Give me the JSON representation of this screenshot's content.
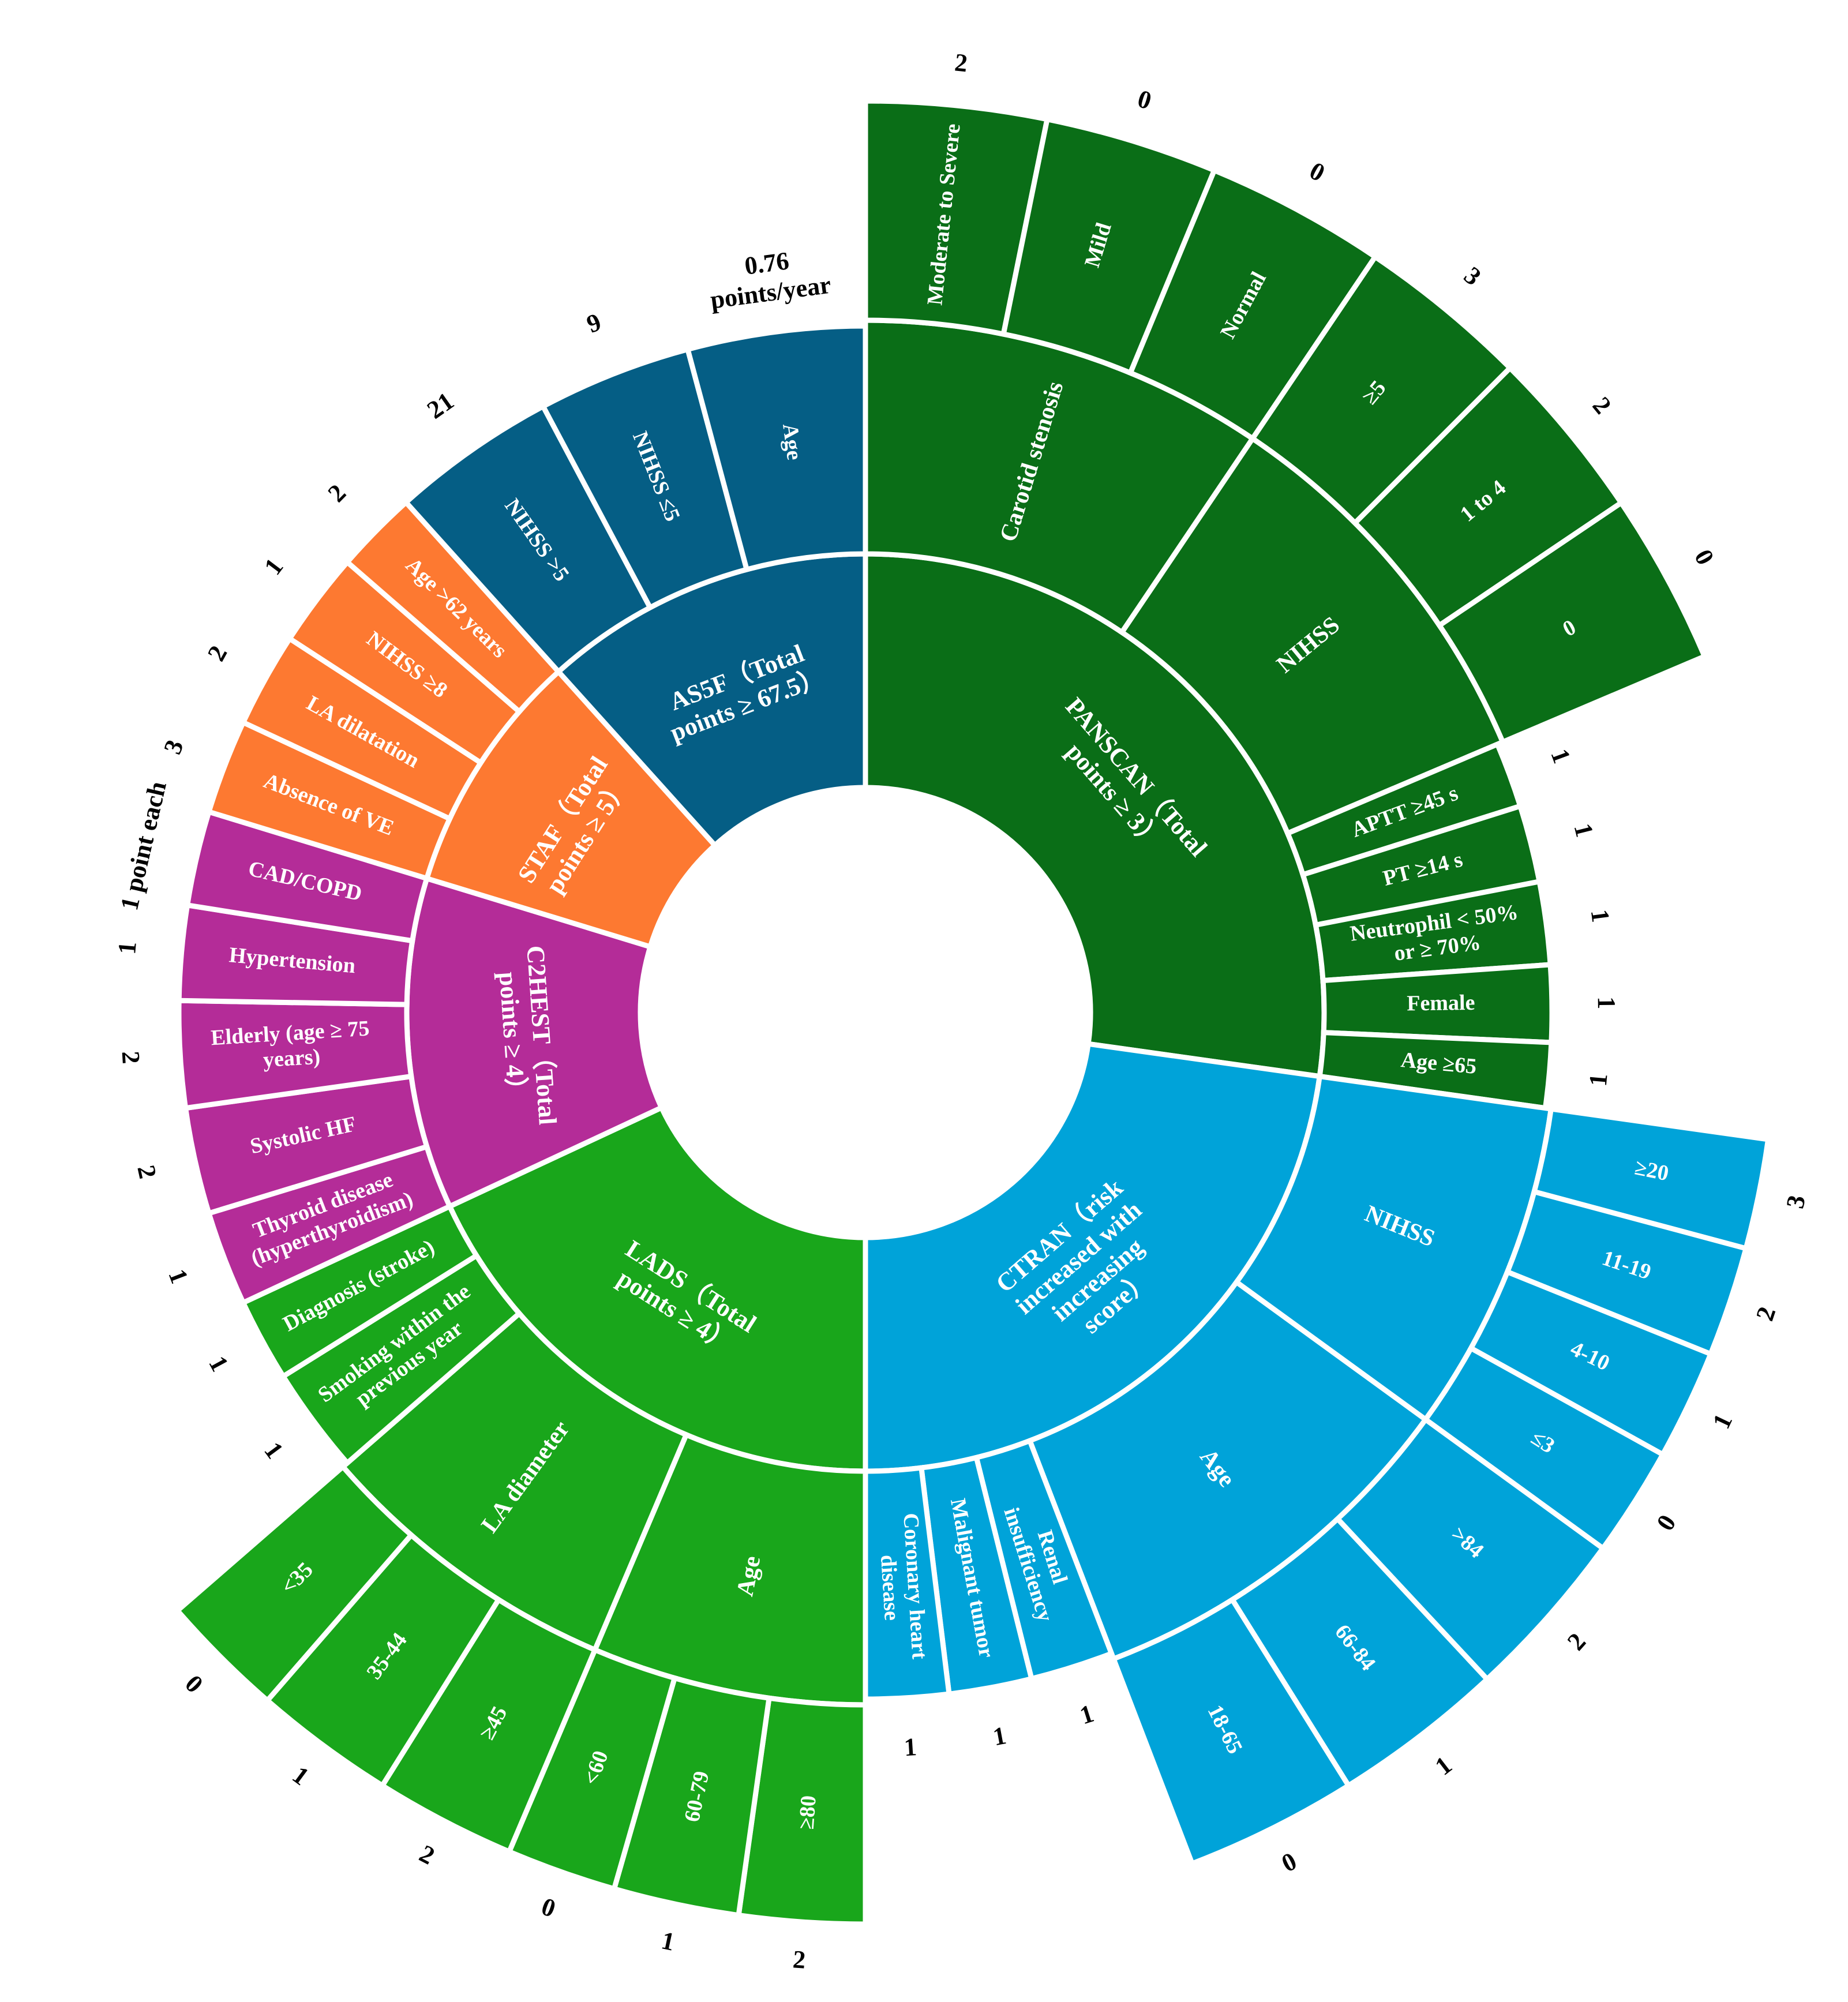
{
  "chart_data": {
    "type": "sunburst",
    "colors": {
      "PANSCAN": "#0a6e17",
      "CTRAN": "#00a3d9",
      "LADS": "#19a61b",
      "C2HEST": "#b42c98",
      "STAF": "#fd7931",
      "AS5F": "#055e85"
    },
    "schemes": [
      {
        "id": "PANSCAN",
        "label": "PANSCAN（Total points ≥ 3）",
        "items": [
          {
            "label": "Carotid stenosis",
            "sub": [
              {
                "label": "Moderate to Severe",
                "points": "2"
              },
              {
                "label": "Mild",
                "points": "0"
              },
              {
                "label": "Normal",
                "points": "0"
              }
            ]
          },
          {
            "label": "NIHSS",
            "sub": [
              {
                "label": "≥5",
                "points": "3"
              },
              {
                "label": "1 to 4",
                "points": "2"
              },
              {
                "label": "0",
                "points": "0"
              }
            ]
          },
          {
            "label": "APTT ≥45 s",
            "points": "1"
          },
          {
            "label": "PT ≥14 s",
            "points": "1"
          },
          {
            "label": "Neutrophil < 50% or ≥ 70%",
            "points": "1"
          },
          {
            "label": "Female",
            "points": "1"
          },
          {
            "label": "Age ≥65",
            "points": "1"
          }
        ]
      },
      {
        "id": "CTRAN",
        "label": "CTRAN（risk increased with increasing score）",
        "items": [
          {
            "label": "NIHSS",
            "sub": [
              {
                "label": "≥20",
                "points": "3"
              },
              {
                "label": "11-19",
                "points": "2"
              },
              {
                "label": "4-10",
                "points": "1"
              },
              {
                "label": "≤3",
                "points": "0"
              }
            ]
          },
          {
            "label": "Age",
            "sub": [
              {
                "label": ">84",
                "points": "2"
              },
              {
                "label": "66-84",
                "points": "1"
              },
              {
                "label": "18-65",
                "points": "0"
              }
            ]
          },
          {
            "label": "Renal insufficiency",
            "points": "1"
          },
          {
            "label": "Malignant tumor",
            "points": "1"
          },
          {
            "label": "Coronary heart disease",
            "points": "1"
          }
        ]
      },
      {
        "id": "LADS",
        "label": "LADS（Total points ≥ 4）",
        "items": [
          {
            "label": "Age",
            "sub": [
              {
                "label": "≥80",
                "points": "2"
              },
              {
                "label": "60-79",
                "points": "1"
              },
              {
                "label": "<60",
                "points": "0"
              }
            ]
          },
          {
            "label": "LA diameter",
            "sub": [
              {
                "label": "≥45",
                "points": "2"
              },
              {
                "label": "35-44",
                "points": "1"
              },
              {
                "label": "<35",
                "points": "0"
              }
            ]
          },
          {
            "label": "Smoking within the previous year",
            "points": "1"
          },
          {
            "label": "Diagnosis (stroke)",
            "points": "1"
          }
        ]
      },
      {
        "id": "C2HEST",
        "label": "C2HEST（Total points ≥ 4）",
        "items": [
          {
            "label": "Thyroid disease (hyperthyroidism)",
            "points": "1"
          },
          {
            "label": "Systolic HF",
            "points": "2"
          },
          {
            "label": "Elderly (age ≥ 75 years)",
            "points": "2"
          },
          {
            "label": "Hypertension",
            "points": "1"
          },
          {
            "label": "CAD/COPD",
            "points": "1 point each"
          }
        ]
      },
      {
        "id": "STAF",
        "label": "STAF（Total points ≥ 5）",
        "items": [
          {
            "label": "Absence of VE",
            "points": "3"
          },
          {
            "label": "LA dilatation",
            "points": "2"
          },
          {
            "label": "NIHSS ≥8",
            "points": "1"
          },
          {
            "label": "Age >62 years",
            "points": "2"
          }
        ]
      },
      {
        "id": "AS5F",
        "label": "AS5F（Total points ≥ 67.5）",
        "items": [
          {
            "label": "NIHSS >5",
            "points": "21"
          },
          {
            "label": "NIHSS ≤5",
            "points": "9"
          },
          {
            "label": "Age",
            "points": "0.76 points/year"
          }
        ]
      }
    ]
  }
}
